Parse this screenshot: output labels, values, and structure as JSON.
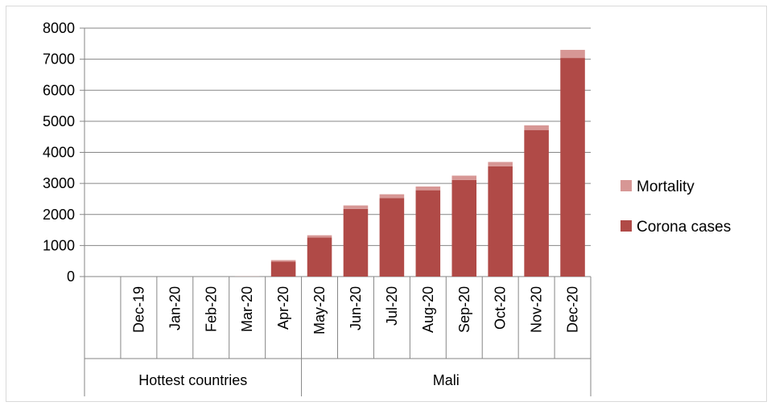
{
  "chart_data": {
    "type": "bar",
    "stacked": true,
    "title": "",
    "xlabel": "",
    "ylabel": "",
    "ylim": [
      0,
      8000
    ],
    "yticks": [
      0,
      1000,
      2000,
      3000,
      4000,
      5000,
      6000,
      7000,
      8000
    ],
    "grid": true,
    "legend_position": "right",
    "categories": [
      "",
      "Dec-19",
      "Jan-20",
      "Feb-20",
      "Mar-20",
      "Apr-20",
      "May-20",
      "Jun-20",
      "Jul-20",
      "Aug-20",
      "Sep-20",
      "Oct-20",
      "Nov-20",
      "Dec-20"
    ],
    "groups": [
      {
        "label": "Hottest countries",
        "start": 0,
        "end": 5
      },
      {
        "label": "Mali",
        "start": 6,
        "end": 13
      }
    ],
    "series": [
      {
        "name": "Corona cases",
        "color": "#b04a47",
        "values": [
          0,
          0,
          0,
          0,
          0,
          480,
          1260,
          2180,
          2530,
          2780,
          3110,
          3550,
          4720,
          7040
        ]
      },
      {
        "name": "Mortality",
        "color": "#d79795",
        "values": [
          0,
          0,
          0,
          0,
          5,
          50,
          70,
          110,
          120,
          120,
          140,
          140,
          150,
          260
        ]
      }
    ]
  }
}
